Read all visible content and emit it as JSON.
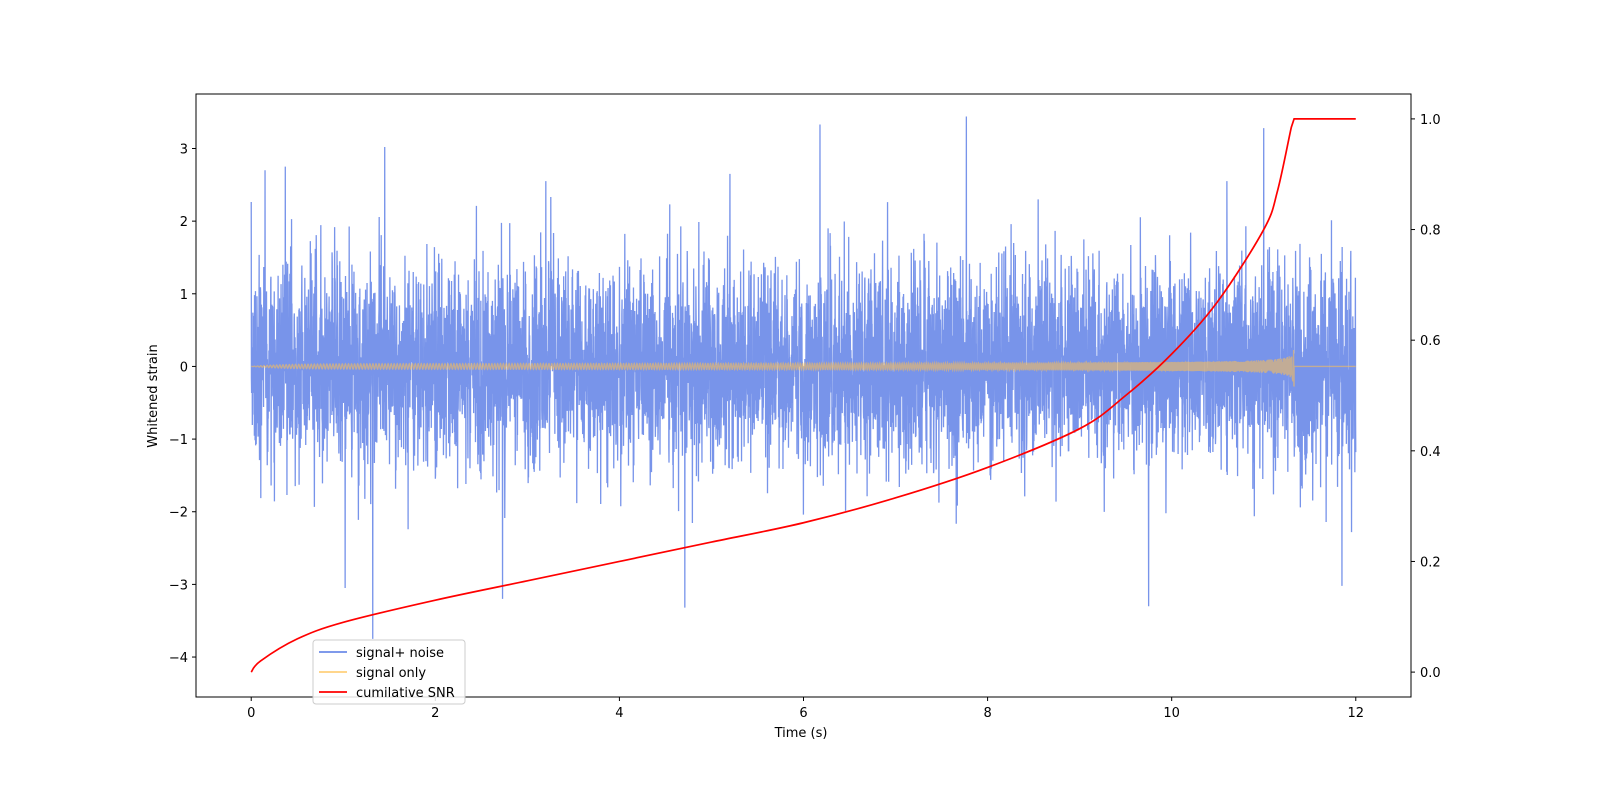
{
  "chart_data": {
    "type": "line",
    "title": "",
    "xlabel": "Time (s)",
    "ylabel": "Whitened strain",
    "y2label": "",
    "xlim": [
      -0.6,
      12.6
    ],
    "ylim": [
      -4.55,
      3.75
    ],
    "y2lim": [
      -0.045,
      1.045
    ],
    "x_ticks": [
      0,
      2,
      4,
      6,
      8,
      10,
      12
    ],
    "x_tick_labels": [
      "0",
      "2",
      "4",
      "6",
      "8",
      "10",
      "12"
    ],
    "y_ticks": [
      -4,
      -3,
      -2,
      -1,
      0,
      1,
      2,
      3
    ],
    "y_tick_labels": [
      "−4",
      "−3",
      "−2",
      "−1",
      "0",
      "1",
      "2",
      "3"
    ],
    "y2_ticks": [
      0.0,
      0.2,
      0.4,
      0.6,
      0.8,
      1.0
    ],
    "y2_tick_labels": [
      "0.0",
      "0.2",
      "0.4",
      "0.6",
      "0.8",
      "1.0"
    ],
    "grid": false,
    "legend_position": "lower-left",
    "series": [
      {
        "name": "signal+ noise",
        "axis": "left",
        "color": "#6d8be8",
        "kind": "noise",
        "time_range": [
          0,
          12
        ],
        "typical_envelope": 1.4,
        "peaks": [
          {
            "x": 1.32,
            "y": -3.75
          },
          {
            "x": 1.45,
            "y": 3.02
          },
          {
            "x": 6.18,
            "y": 3.33
          },
          {
            "x": 7.77,
            "y": 3.44
          },
          {
            "x": 11.0,
            "y": 3.28
          },
          {
            "x": 0.15,
            "y": 2.7
          },
          {
            "x": 0.37,
            "y": 2.75
          },
          {
            "x": 2.73,
            "y": -3.2
          },
          {
            "x": 4.71,
            "y": -3.32
          },
          {
            "x": 9.75,
            "y": -3.3
          },
          {
            "x": 1.02,
            "y": -3.05
          },
          {
            "x": 11.85,
            "y": -3.02
          },
          {
            "x": 3.2,
            "y": 2.55
          },
          {
            "x": 5.2,
            "y": 2.65
          },
          {
            "x": 8.55,
            "y": 2.3
          },
          {
            "x": 10.6,
            "y": 2.55
          }
        ]
      },
      {
        "name": "signal only",
        "axis": "left",
        "color": "#ffc050",
        "kind": "chirp",
        "time_range": [
          0,
          11.33
        ],
        "tail_range": [
          11.33,
          12
        ],
        "max_amplitude": 0.27
      },
      {
        "name": "cumilative SNR",
        "axis": "right",
        "color": "#ff0000",
        "kind": "line",
        "x": [
          0,
          0.1,
          0.5,
          1,
          2,
          3,
          4,
          5,
          6,
          7,
          8,
          9,
          9.5,
          10,
          10.5,
          11,
          11.15,
          11.3,
          11.33,
          12
        ],
        "y": [
          0.0,
          0.02,
          0.06,
          0.09,
          0.13,
          0.165,
          0.2,
          0.235,
          0.27,
          0.315,
          0.37,
          0.44,
          0.5,
          0.575,
          0.67,
          0.8,
          0.87,
          0.985,
          1.0,
          1.0
        ]
      }
    ]
  }
}
